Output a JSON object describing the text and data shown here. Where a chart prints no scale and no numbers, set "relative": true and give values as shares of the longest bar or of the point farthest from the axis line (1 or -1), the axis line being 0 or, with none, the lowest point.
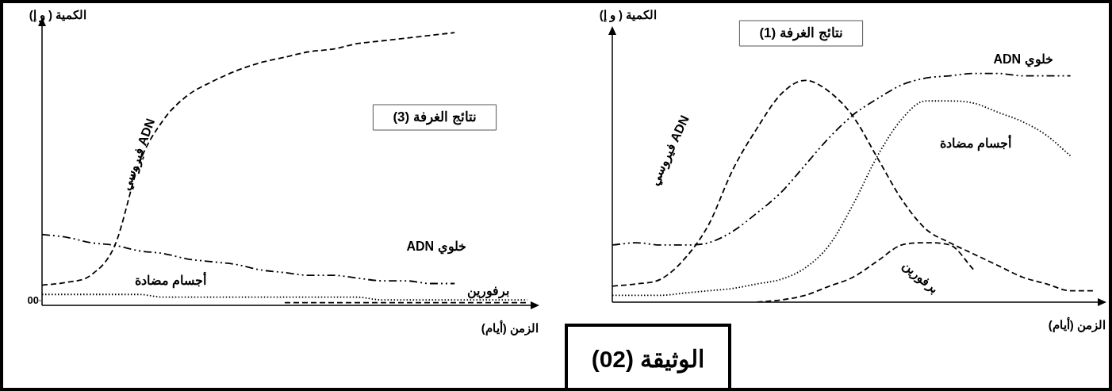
{
  "chart_data": [
    {
      "type": "line",
      "title": "نتائج الغرفة (1)",
      "ylabel": "الكمية ( و إ)",
      "xlabel": "الزمن (أيام)",
      "relative": true,
      "tick_labels": false,
      "marker": "none",
      "categories": [
        null,
        null,
        null,
        null,
        null,
        null,
        null,
        null,
        null,
        null,
        null,
        null,
        null,
        null,
        null,
        null,
        null,
        null,
        null,
        null,
        null
      ],
      "series": [
        {
          "name": "ADN فيروسي",
          "color": "#000000",
          "line_style": "dashed",
          "values": [
            0.07,
            0.08,
            0.1,
            0.19,
            0.34,
            0.58,
            0.76,
            0.91,
            0.97,
            0.92,
            0.81,
            0.63,
            0.45,
            0.32,
            0.26,
            0.21,
            0.16,
            0.11,
            0.08,
            0.05,
            0.05
          ]
        },
        {
          "name": "خلوي ADN",
          "color": "#000000",
          "line_style": "dashdot",
          "values": [
            0.25,
            0.26,
            0.25,
            0.25,
            0.26,
            0.31,
            0.39,
            0.48,
            0.6,
            0.72,
            0.82,
            0.89,
            0.95,
            0.98,
            0.99,
            1,
            1,
            0.99,
            0.99,
            0.99,
            null
          ]
        },
        {
          "name": "أجسام مضادة",
          "color": "#000000",
          "line_style": "dotted",
          "values": [
            0.03,
            0.03,
            0.03,
            0.04,
            0.05,
            0.06,
            0.08,
            0.1,
            0.15,
            0.25,
            0.43,
            0.64,
            0.8,
            0.88,
            0.88,
            0.87,
            0.83,
            0.79,
            0.73,
            0.64,
            null
          ]
        },
        {
          "name": "برفورين",
          "color": "#000000",
          "line_style": "dashed",
          "values": [
            null,
            null,
            null,
            null,
            null,
            null,
            0,
            0.01,
            0.03,
            0.07,
            0.11,
            0.18,
            0.25,
            0.26,
            0.25,
            0.14,
            null,
            null,
            null,
            null,
            null
          ]
        }
      ]
    },
    {
      "type": "line",
      "title": "نتائج الغرفة (3)",
      "ylabel": "الكمية ( و إ)",
      "xlabel": "الزمن (أيام)",
      "relative": true,
      "tick_labels": false,
      "marker": "none",
      "annotations": [
        "00"
      ],
      "categories": [
        null,
        null,
        null,
        null,
        null,
        null,
        null,
        null,
        null,
        null,
        null,
        null,
        null,
        null,
        null,
        null,
        null,
        null,
        null,
        null,
        null
      ],
      "series": [
        {
          "name": "ADN فيروسي",
          "color": "#000000",
          "line_style": "dashed",
          "values": [
            0.074,
            0.084,
            0.11,
            0.22,
            0.52,
            0.68,
            0.77,
            0.82,
            0.86,
            0.89,
            0.91,
            0.93,
            0.94,
            0.96,
            0.97,
            0.98,
            0.99,
            1,
            null,
            null,
            null
          ]
        },
        {
          "name": "خلوي ADN",
          "color": "#000000",
          "line_style": "dashdot",
          "values": [
            0.26,
            0.25,
            0.23,
            0.22,
            0.2,
            0.19,
            0.17,
            0.16,
            0.15,
            0.13,
            0.12,
            0.11,
            0.11,
            0.1,
            0.09,
            0.09,
            0.08,
            0.08,
            null,
            null,
            null
          ]
        },
        {
          "name": "أجسام مضادة",
          "color": "#000000",
          "line_style": "dotted",
          "values": [
            0.04,
            0.04,
            0.04,
            0.04,
            0.04,
            0.03,
            0.03,
            0.03,
            0.03,
            0.03,
            0.03,
            0.03,
            0.03,
            0.03,
            0.02,
            0.02,
            0.02,
            0.02,
            0.02,
            0.02,
            0.02
          ]
        },
        {
          "name": "برفورين",
          "color": "#000000",
          "line_style": "dashed",
          "values": [
            null,
            null,
            null,
            null,
            null,
            null,
            null,
            null,
            null,
            null,
            0.01,
            0.01,
            0.01,
            0.01,
            0.01,
            0.01,
            0.01,
            0.01,
            0.01,
            0.01,
            0.01
          ]
        }
      ]
    },
    {
      "type": "other",
      "title": "الوثيقة (02)"
    }
  ]
}
